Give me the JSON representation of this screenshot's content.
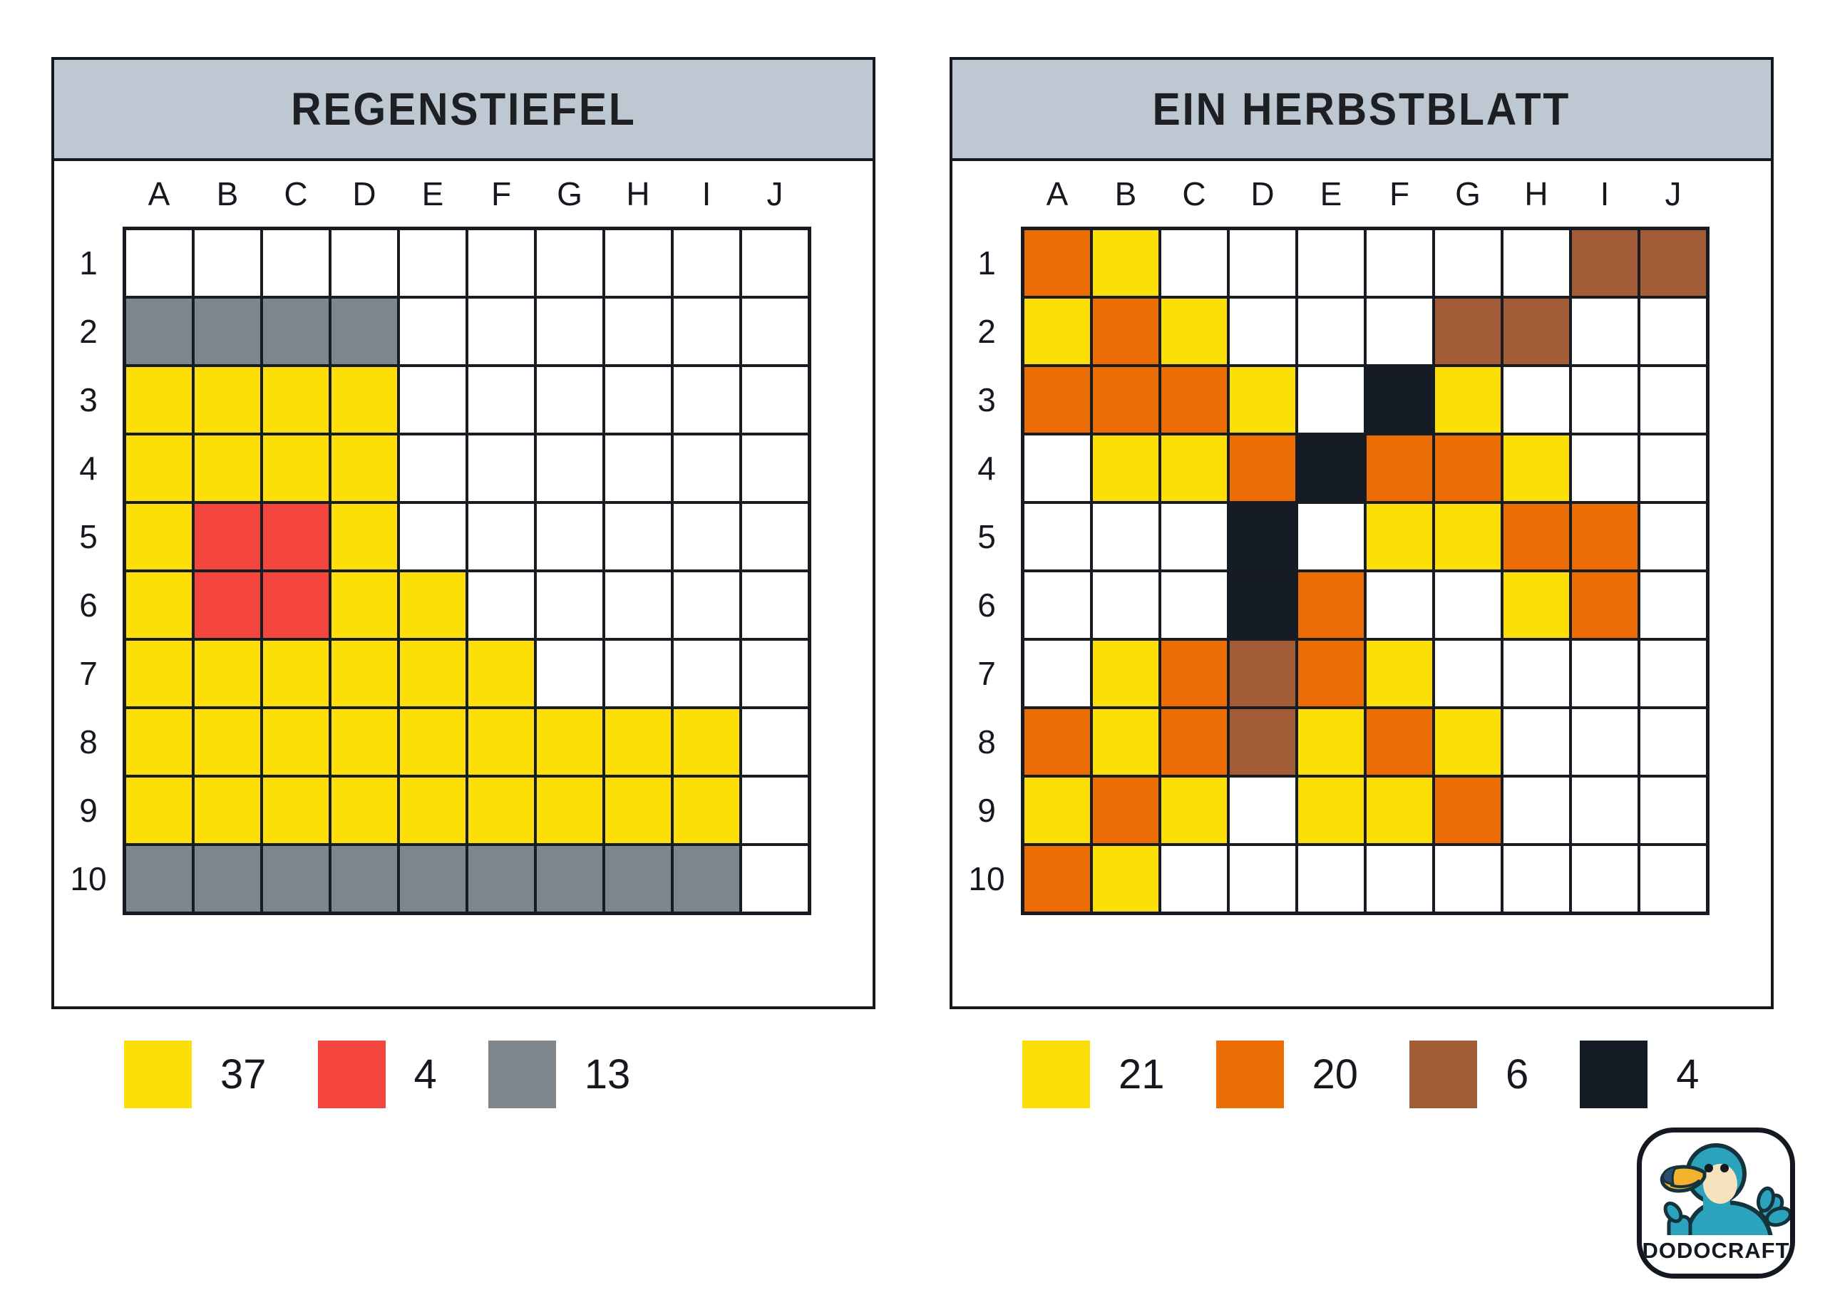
{
  "palette": {
    "Y": {
      "name": "yellow",
      "hex": "#fcdf06"
    },
    "R": {
      "name": "red",
      "hex": "#f4453e"
    },
    "G": {
      "name": "gray",
      "hex": "#7d868d"
    },
    "O": {
      "name": "orange",
      "hex": "#ec6d04"
    },
    "B": {
      "name": "brown",
      "hex": "#a25c36"
    },
    "K": {
      "name": "black",
      "hex": "#161c26"
    },
    "W": {
      "name": "white",
      "hex": "#ffffff"
    }
  },
  "colors": {
    "title_bar": "#bdc8d2",
    "grid_line": "#161b24",
    "panel_border": "#14181f"
  },
  "panels": [
    {
      "title": "REGENSTIEFEL",
      "columns": [
        "A",
        "B",
        "C",
        "D",
        "E",
        "F",
        "G",
        "H",
        "I",
        "J"
      ],
      "rows": [
        "1",
        "2",
        "3",
        "4",
        "5",
        "6",
        "7",
        "8",
        "9",
        "10"
      ],
      "grid": [
        "WWWWWWWWWW",
        "GGGGWWWWWW",
        "YYYYWWWWWW",
        "YYYYWWWWWW",
        "YRRYWWWWWW",
        "YRRYYWWWWW",
        "YYYYYYWWWW",
        "YYYYYYYYYW",
        "YYYYYYYYYW",
        "GGGGGGGGGW"
      ],
      "legend": [
        {
          "key": "Y",
          "count": "37"
        },
        {
          "key": "R",
          "count": "4"
        },
        {
          "key": "G",
          "count": "13"
        }
      ]
    },
    {
      "title": "EIN HERBSTBLATT",
      "columns": [
        "A",
        "B",
        "C",
        "D",
        "E",
        "F",
        "G",
        "H",
        "I",
        "J"
      ],
      "rows": [
        "1",
        "2",
        "3",
        "4",
        "5",
        "6",
        "7",
        "8",
        "9",
        "10"
      ],
      "grid": [
        "OYWWWWWWBB",
        "YOYWWWBBWW",
        "OOOYWKYWWW",
        "WYYOKOOYWW",
        "WWWKWYYOOW",
        "WWWKOWWYOW",
        "WYOBOYWWWW",
        "OYOBYOYWWW",
        "YOYWYYOWWW",
        "OYWWWWWWWW"
      ],
      "legend": [
        {
          "key": "Y",
          "count": "21"
        },
        {
          "key": "O",
          "count": "20"
        },
        {
          "key": "B",
          "count": "6"
        },
        {
          "key": "K",
          "count": "4"
        }
      ]
    }
  ],
  "logo": {
    "brand": "DODOCRAFT",
    "bird_color": "#2ba3bc",
    "face_color": "#f6e3bd",
    "beak_color": "#f2b22e",
    "beak_tip_color": "#2d4e72"
  }
}
